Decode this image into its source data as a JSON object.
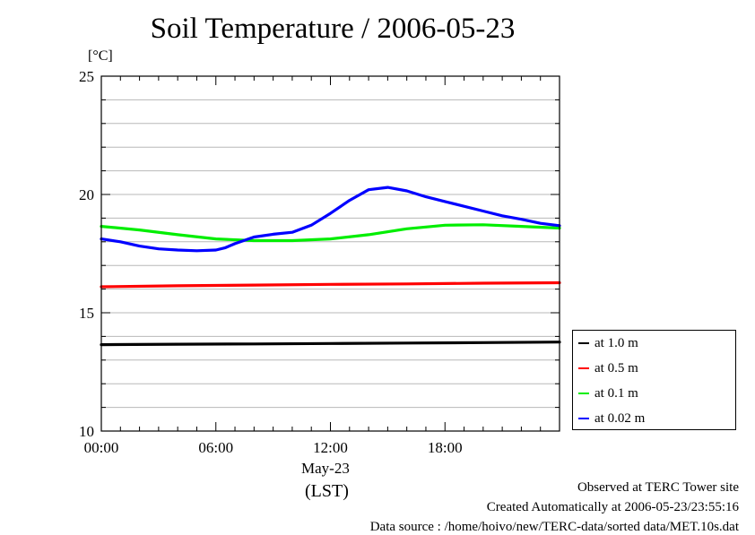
{
  "title": "Soil Temperature / 2006-05-23",
  "unit_label": "[°C]",
  "date_label": "May-23",
  "timezone_label": "(LST)",
  "footer": {
    "observed": "Observed at TERC Tower site",
    "created": "Created Automatically at 2006-05-23/23:55:16",
    "source": "Data source : /home/hoivo/new/TERC-data/sorted  data/MET.10s.dat"
  },
  "chart_data": {
    "type": "line",
    "title": "Soil Temperature / 2006-05-23",
    "ylabel": "[°C]",
    "xlabel": "May-23 (LST)",
    "xlim": [
      0,
      24
    ],
    "ylim": [
      10,
      25
    ],
    "x_ticks": [
      {
        "value": 0,
        "label": "00:00"
      },
      {
        "value": 6,
        "label": "06:00"
      },
      {
        "value": 12,
        "label": "12:00"
      },
      {
        "value": 18,
        "label": "18:00"
      }
    ],
    "y_ticks": [
      {
        "value": 10,
        "label": "10"
      },
      {
        "value": 15,
        "label": "15"
      },
      {
        "value": 20,
        "label": "20"
      },
      {
        "value": 25,
        "label": "25"
      }
    ],
    "grid": true,
    "legend_position": "right",
    "series": [
      {
        "name": "at 1.0 m",
        "color": "#000000",
        "points": [
          [
            0,
            13.65
          ],
          [
            4,
            13.67
          ],
          [
            8,
            13.68
          ],
          [
            12,
            13.7
          ],
          [
            16,
            13.72
          ],
          [
            20,
            13.74
          ],
          [
            24,
            13.76
          ]
        ]
      },
      {
        "name": "at 0.5 m",
        "color": "#ff0000",
        "points": [
          [
            0,
            16.1
          ],
          [
            4,
            16.14
          ],
          [
            8,
            16.17
          ],
          [
            12,
            16.2
          ],
          [
            16,
            16.22
          ],
          [
            20,
            16.25
          ],
          [
            24,
            16.27
          ]
        ]
      },
      {
        "name": "at 0.1 m",
        "color": "#00ee00",
        "points": [
          [
            0,
            18.65
          ],
          [
            2,
            18.5
          ],
          [
            4,
            18.3
          ],
          [
            6,
            18.12
          ],
          [
            8,
            18.05
          ],
          [
            10,
            18.05
          ],
          [
            12,
            18.12
          ],
          [
            14,
            18.3
          ],
          [
            16,
            18.55
          ],
          [
            18,
            18.7
          ],
          [
            20,
            18.72
          ],
          [
            22,
            18.65
          ],
          [
            24,
            18.58
          ]
        ]
      },
      {
        "name": "at 0.02 m",
        "color": "#0000ff",
        "points": [
          [
            0,
            18.12
          ],
          [
            1,
            18.0
          ],
          [
            2,
            17.82
          ],
          [
            3,
            17.7
          ],
          [
            4,
            17.65
          ],
          [
            5,
            17.62
          ],
          [
            6,
            17.65
          ],
          [
            6.5,
            17.75
          ],
          [
            7,
            17.92
          ],
          [
            8,
            18.2
          ],
          [
            9,
            18.32
          ],
          [
            10,
            18.4
          ],
          [
            11,
            18.7
          ],
          [
            12,
            19.2
          ],
          [
            13,
            19.75
          ],
          [
            14,
            20.2
          ],
          [
            15,
            20.3
          ],
          [
            16,
            20.15
          ],
          [
            17,
            19.9
          ],
          [
            18,
            19.7
          ],
          [
            19,
            19.5
          ],
          [
            20,
            19.3
          ],
          [
            21,
            19.1
          ],
          [
            22,
            18.95
          ],
          [
            23,
            18.78
          ],
          [
            24,
            18.68
          ]
        ]
      }
    ]
  }
}
